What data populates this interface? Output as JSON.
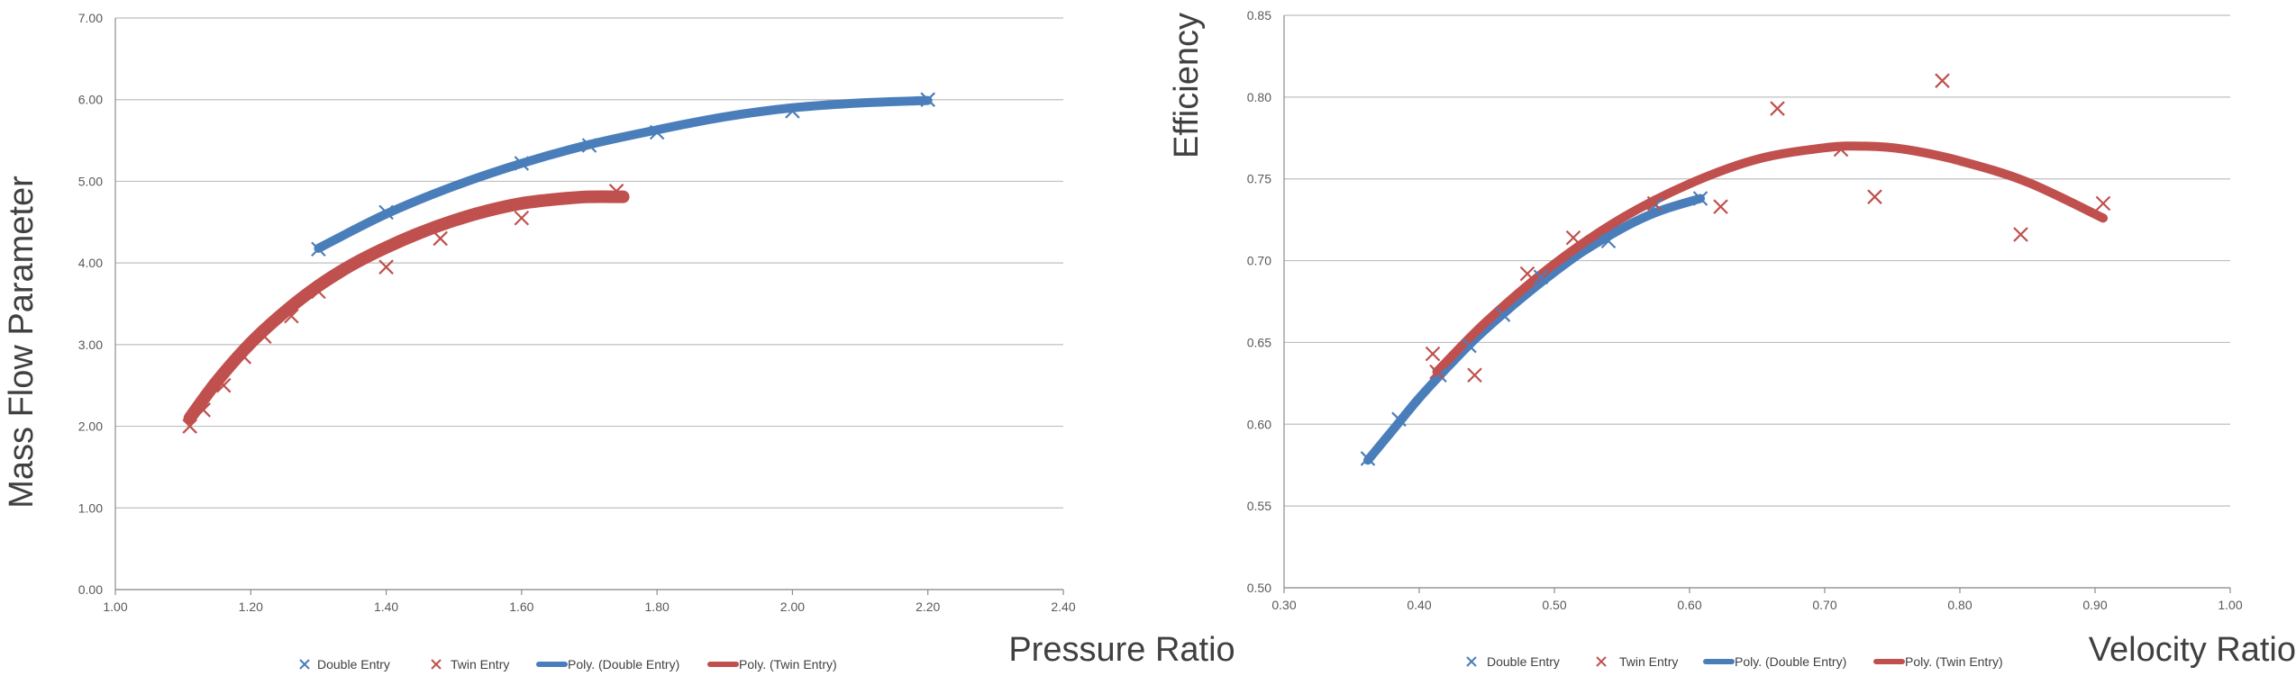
{
  "chart_data": [
    {
      "type": "scatter",
      "title": "",
      "xlabel": "Pressure Ratio",
      "ylabel": "Mass Flow Parameter",
      "xlim": [
        1.0,
        2.4
      ],
      "ylim": [
        0.0,
        7.0
      ],
      "xticks": [
        "1.00",
        "1.20",
        "1.40",
        "1.60",
        "1.80",
        "2.00",
        "2.20",
        "2.40"
      ],
      "yticks": [
        "0.00",
        "1.00",
        "2.00",
        "3.00",
        "4.00",
        "5.00",
        "6.00",
        "7.00"
      ],
      "grid": "horizontal",
      "legend_position": "bottom",
      "legend": [
        "Double Entry",
        "Twin Entry",
        "Poly. (Double Entry)",
        "Poly. (Twin Entry)"
      ],
      "series": [
        {
          "name": "Double Entry",
          "color": "#4a7ebb",
          "marker": "x",
          "x": [
            1.3,
            1.4,
            1.6,
            1.7,
            1.8,
            2.0,
            2.2
          ],
          "y": [
            4.17,
            4.62,
            5.22,
            5.44,
            5.6,
            5.86,
            6.0
          ]
        },
        {
          "name": "Twin Entry",
          "color": "#c0504d",
          "marker": "x",
          "x": [
            1.11,
            1.13,
            1.16,
            1.19,
            1.22,
            1.26,
            1.3,
            1.4,
            1.48,
            1.6,
            1.74
          ],
          "y": [
            2.0,
            2.2,
            2.5,
            2.85,
            3.1,
            3.35,
            3.65,
            3.95,
            4.3,
            4.55,
            4.88
          ]
        }
      ],
      "trendlines": [
        {
          "name": "Poly. (Double Entry)",
          "color": "#4a7ebb",
          "x": [
            1.3,
            1.4,
            1.5,
            1.6,
            1.7,
            1.8,
            1.9,
            2.0,
            2.1,
            2.2
          ],
          "y": [
            4.18,
            4.6,
            4.94,
            5.22,
            5.45,
            5.63,
            5.79,
            5.9,
            5.96,
            5.99
          ]
        },
        {
          "name": "Poly. (Twin Entry)",
          "color": "#c0504d",
          "x": [
            1.11,
            1.15,
            1.2,
            1.25,
            1.3,
            1.35,
            1.4,
            1.45,
            1.5,
            1.55,
            1.6,
            1.65,
            1.7,
            1.75
          ],
          "y": [
            2.1,
            2.55,
            3.02,
            3.4,
            3.72,
            3.98,
            4.19,
            4.37,
            4.52,
            4.64,
            4.73,
            4.78,
            4.81,
            4.81
          ]
        }
      ]
    },
    {
      "type": "scatter",
      "title": "",
      "xlabel": "Velocity Ratio",
      "ylabel": "Efficiency",
      "xlim": [
        0.3,
        1.0
      ],
      "ylim": [
        0.5,
        0.85
      ],
      "xticks": [
        "0.30",
        "0.40",
        "0.50",
        "0.60",
        "0.70",
        "0.80",
        "0.90",
        "1.00"
      ],
      "yticks": [
        "0.50",
        "0.55",
        "0.60",
        "0.65",
        "0.70",
        "0.75",
        "0.80",
        "0.85"
      ],
      "grid": "horizontal",
      "legend_position": "bottom",
      "legend": [
        "Double Entry",
        "Twin Entry",
        "Poly. (Double Entry)",
        "Poly. (Twin Entry)"
      ],
      "series": [
        {
          "name": "Double Entry",
          "color": "#4a7ebb",
          "marker": "x",
          "x": [
            0.362,
            0.385,
            0.415,
            0.437,
            0.462,
            0.49,
            0.54,
            0.575,
            0.608
          ],
          "y": [
            0.579,
            0.603,
            0.63,
            0.648,
            0.667,
            0.69,
            0.712,
            0.734,
            0.738
          ]
        },
        {
          "name": "Twin Entry",
          "color": "#c0504d",
          "marker": "x",
          "x": [
            0.41,
            0.413,
            0.441,
            0.48,
            0.514,
            0.574,
            0.623,
            0.665,
            0.712,
            0.737,
            0.787,
            0.845,
            0.906
          ],
          "y": [
            0.643,
            0.632,
            0.63,
            0.692,
            0.714,
            0.735,
            0.733,
            0.793,
            0.768,
            0.739,
            0.81,
            0.716,
            0.735
          ]
        }
      ],
      "trendlines": [
        {
          "name": "Poly. (Double Entry)",
          "color": "#4a7ebb",
          "x": [
            0.362,
            0.38,
            0.4,
            0.42,
            0.44,
            0.46,
            0.48,
            0.5,
            0.52,
            0.54,
            0.56,
            0.58,
            0.608
          ],
          "y": [
            0.578,
            0.596,
            0.616,
            0.634,
            0.651,
            0.666,
            0.68,
            0.693,
            0.705,
            0.715,
            0.724,
            0.731,
            0.738
          ]
        },
        {
          "name": "Poly. (Twin Entry)",
          "color": "#c0504d",
          "x": [
            0.413,
            0.45,
            0.5,
            0.55,
            0.6,
            0.65,
            0.7,
            0.73,
            0.76,
            0.8,
            0.85,
            0.906
          ],
          "y": [
            0.632,
            0.663,
            0.698,
            0.726,
            0.747,
            0.762,
            0.769,
            0.77,
            0.768,
            0.761,
            0.748,
            0.726
          ]
        }
      ]
    }
  ]
}
